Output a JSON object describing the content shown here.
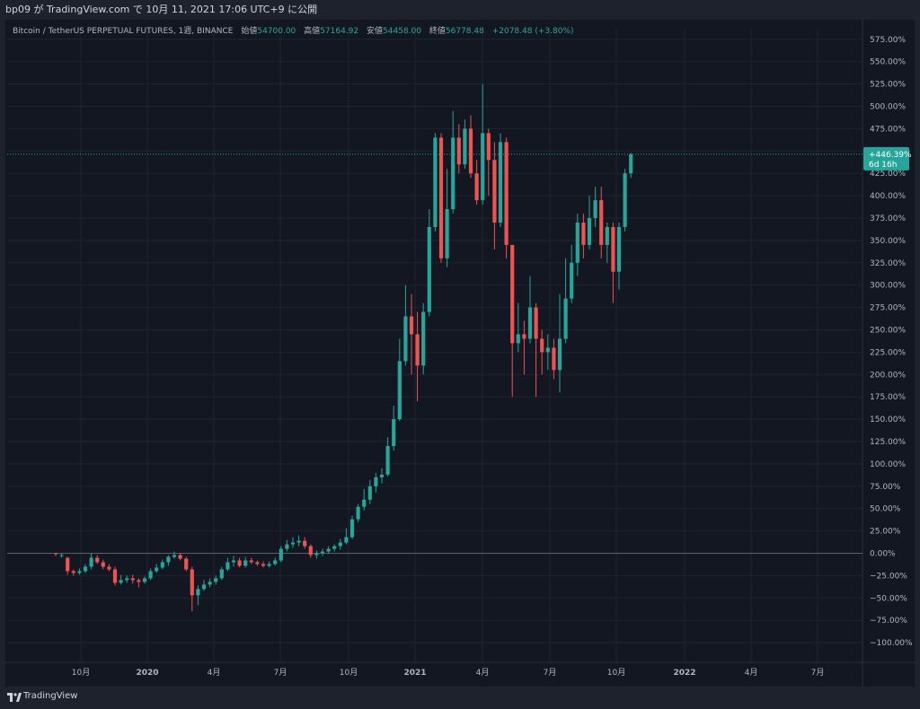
{
  "header": {
    "title": "bp09 が TradingView.com で 10月 11, 2021 17:06 UTC+9 に公開"
  },
  "legend": {
    "symbol": "Bitcoin / TetherUS PERPETUAL FUTURES, 1週, BINANCE",
    "open_label": "始値",
    "open": "54700.00",
    "high_label": "高値",
    "high": "57164.92",
    "low_label": "安値",
    "low": "54458.00",
    "close_label": "終値",
    "close": "56778.48",
    "change": "+2078.48 (+3.80%)"
  },
  "price_tag": {
    "value": "+446.39%",
    "countdown": "6d 16h"
  },
  "footer": {
    "brand": "TradingView"
  },
  "colors": {
    "up": "#26a69a",
    "down": "#ef5350",
    "background": "#131722",
    "grid": "#1f2431",
    "text": "#b2b5be"
  },
  "chart_data": {
    "type": "candlestick",
    "y_unit": "%",
    "ylim": [
      -112,
      592
    ],
    "y_ticks": [
      "575.00%",
      "550.00%",
      "525.00%",
      "500.00%",
      "475.00%",
      "450.00%",
      "425.00%",
      "400.00%",
      "375.00%",
      "350.00%",
      "325.00%",
      "300.00%",
      "275.00%",
      "250.00%",
      "225.00%",
      "200.00%",
      "175.00%",
      "150.00%",
      "125.00%",
      "100.00%",
      "75.00%",
      "50.00%",
      "25.00%",
      "0.00%",
      "−25.00%",
      "−50.00%",
      "−75.00%",
      "−100.00%"
    ],
    "x_ticks": [
      {
        "label": "10月",
        "bold": false
      },
      {
        "label": "2020",
        "bold": true
      },
      {
        "label": "4月",
        "bold": false
      },
      {
        "label": "7月",
        "bold": false
      },
      {
        "label": "10月",
        "bold": false
      },
      {
        "label": "2021",
        "bold": true
      },
      {
        "label": "4月",
        "bold": false
      },
      {
        "label": "7月",
        "bold": false
      },
      {
        "label": "10月",
        "bold": false
      },
      {
        "label": "2022",
        "bold": true
      },
      {
        "label": "4月",
        "bold": false
      },
      {
        "label": "7月",
        "bold": false
      }
    ],
    "baseline": 0,
    "last_value": 446.39,
    "candles": [
      [
        0,
        -1,
        -3,
        0
      ],
      [
        -3,
        -2,
        -5,
        0
      ],
      [
        -5,
        -20,
        -24,
        -4
      ],
      [
        -20,
        -22,
        -25,
        -18
      ],
      [
        -22,
        -20,
        -24,
        -17
      ],
      [
        -20,
        -15,
        -22,
        -12
      ],
      [
        -15,
        -5,
        -18,
        0
      ],
      [
        -5,
        -10,
        -12,
        -2
      ],
      [
        -10,
        -15,
        -18,
        -7
      ],
      [
        -15,
        -18,
        -20,
        -12
      ],
      [
        -18,
        -33,
        -36,
        -15
      ],
      [
        -33,
        -30,
        -35,
        -24
      ],
      [
        -30,
        -28,
        -33,
        -25
      ],
      [
        -28,
        -30,
        -34,
        -24
      ],
      [
        -30,
        -32,
        -38,
        -28
      ],
      [
        -32,
        -28,
        -34,
        -26
      ],
      [
        -28,
        -20,
        -30,
        -17
      ],
      [
        -20,
        -16,
        -22,
        -12
      ],
      [
        -16,
        -10,
        -18,
        -7
      ],
      [
        -10,
        -4,
        -14,
        -2
      ],
      [
        -4,
        -2,
        -6,
        2
      ],
      [
        -2,
        -6,
        -8,
        0
      ],
      [
        -6,
        -18,
        -20,
        -4
      ],
      [
        -18,
        -47,
        -65,
        -15
      ],
      [
        -47,
        -40,
        -58,
        -36
      ],
      [
        -40,
        -35,
        -42,
        -30
      ],
      [
        -35,
        -32,
        -38,
        -28
      ],
      [
        -32,
        -28,
        -35,
        -25
      ],
      [
        -28,
        -18,
        -30,
        -15
      ],
      [
        -18,
        -10,
        -20,
        -5
      ],
      [
        -10,
        -8,
        -15,
        -3
      ],
      [
        -8,
        -14,
        -16,
        -5
      ],
      [
        -14,
        -8,
        -16,
        -4
      ],
      [
        -8,
        -10,
        -12,
        -5
      ],
      [
        -10,
        -12,
        -14,
        -8
      ],
      [
        -12,
        -14,
        -16,
        -9
      ],
      [
        -14,
        -12,
        -16,
        -9
      ],
      [
        -12,
        -8,
        -14,
        -5
      ],
      [
        -8,
        5,
        -10,
        8
      ],
      [
        5,
        10,
        2,
        15
      ],
      [
        10,
        12,
        6,
        18
      ],
      [
        12,
        14,
        8,
        20
      ],
      [
        14,
        8,
        5,
        18
      ],
      [
        8,
        -2,
        -5,
        10
      ],
      [
        -2,
        0,
        -6,
        3
      ],
      [
        0,
        2,
        -3,
        5
      ],
      [
        2,
        5,
        0,
        8
      ],
      [
        5,
        8,
        2,
        10
      ],
      [
        8,
        12,
        4,
        16
      ],
      [
        12,
        18,
        10,
        28
      ],
      [
        18,
        38,
        16,
        42
      ],
      [
        38,
        52,
        35,
        55
      ],
      [
        52,
        60,
        48,
        72
      ],
      [
        60,
        75,
        55,
        82
      ],
      [
        75,
        85,
        68,
        90
      ],
      [
        85,
        88,
        78,
        95
      ],
      [
        88,
        120,
        86,
        130
      ],
      [
        120,
        150,
        115,
        165
      ],
      [
        150,
        215,
        148,
        240
      ],
      [
        215,
        265,
        210,
        300
      ],
      [
        265,
        245,
        200,
        290
      ],
      [
        245,
        210,
        170,
        270
      ],
      [
        210,
        270,
        200,
        280
      ],
      [
        270,
        365,
        265,
        385
      ],
      [
        365,
        465,
        360,
        470
      ],
      [
        465,
        330,
        325,
        470
      ],
      [
        330,
        385,
        320,
        430
      ],
      [
        385,
        465,
        380,
        495
      ],
      [
        465,
        435,
        425,
        480
      ],
      [
        435,
        475,
        430,
        485
      ],
      [
        475,
        425,
        420,
        490
      ],
      [
        425,
        395,
        390,
        440
      ],
      [
        395,
        470,
        390,
        525
      ],
      [
        470,
        440,
        400,
        475
      ],
      [
        440,
        370,
        340,
        460
      ],
      [
        370,
        460,
        365,
        470
      ],
      [
        460,
        345,
        330,
        465
      ],
      [
        345,
        235,
        175,
        340
      ],
      [
        235,
        245,
        225,
        280
      ],
      [
        245,
        240,
        200,
        260
      ],
      [
        240,
        275,
        235,
        310
      ],
      [
        275,
        240,
        175,
        280
      ],
      [
        240,
        225,
        200,
        250
      ],
      [
        225,
        230,
        205,
        245
      ],
      [
        230,
        205,
        195,
        240
      ],
      [
        205,
        240,
        180,
        290
      ],
      [
        240,
        285,
        235,
        330
      ],
      [
        285,
        325,
        280,
        345
      ],
      [
        325,
        370,
        310,
        380
      ],
      [
        370,
        345,
        330,
        380
      ],
      [
        345,
        375,
        340,
        400
      ],
      [
        375,
        395,
        365,
        410
      ],
      [
        395,
        345,
        330,
        410
      ],
      [
        345,
        365,
        325,
        370
      ],
      [
        365,
        315,
        280,
        370
      ],
      [
        315,
        365,
        295,
        370
      ],
      [
        365,
        425,
        360,
        430
      ],
      [
        425,
        446.39,
        420,
        448
      ]
    ]
  }
}
